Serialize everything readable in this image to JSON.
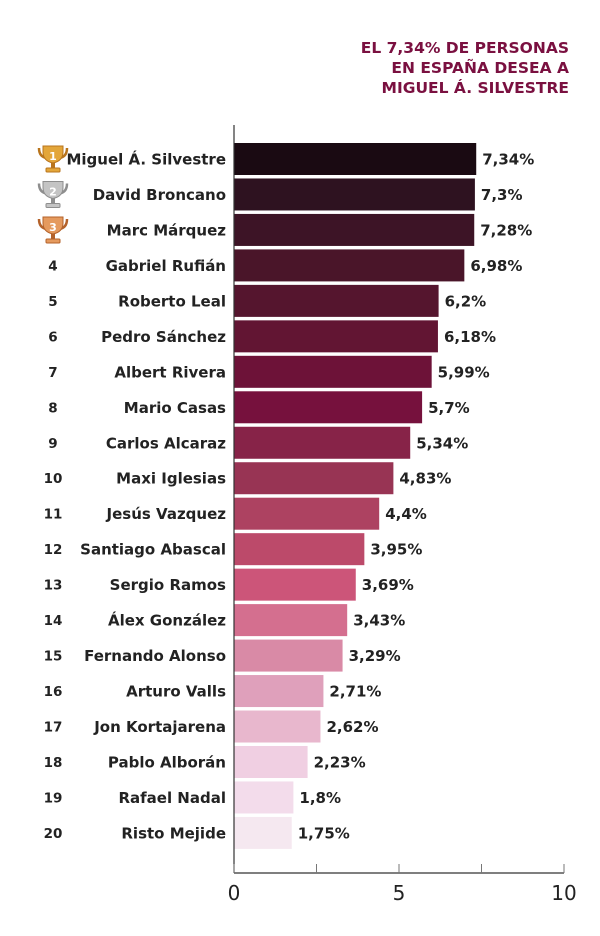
{
  "chart_data": {
    "type": "bar",
    "orientation": "horizontal",
    "title": [
      "EL 7,34% DE PERSONAS",
      "EN ESPAÑA DESEA A",
      "MIGUEL Á. SILVESTRE"
    ],
    "ranks": [
      "1",
      "2",
      "3",
      "4",
      "5",
      "6",
      "7",
      "8",
      "9",
      "10",
      "11",
      "12",
      "13",
      "14",
      "15",
      "16",
      "17",
      "18",
      "19",
      "20"
    ],
    "trophy_ranks": {
      "1": "gold",
      "2": "silver",
      "3": "bronze"
    },
    "categories": [
      "Miguel Á. Silvestre",
      "David Broncano",
      "Marc Márquez",
      "Gabriel Rufián",
      "Roberto Leal",
      "Pedro Sánchez",
      "Albert Rivera",
      "Mario Casas",
      "Carlos Alcaraz",
      "Maxi Iglesias",
      "Jesús Vazquez",
      "Santiago Abascal",
      "Sergio Ramos",
      "Álex González",
      "Fernando Alonso",
      "Arturo Valls",
      "Jon Kortajarena",
      "Pablo Alborán",
      "Rafael Nadal",
      "Risto Mejide"
    ],
    "values": [
      7.34,
      7.3,
      7.28,
      6.98,
      6.2,
      6.18,
      5.99,
      5.7,
      5.34,
      4.83,
      4.4,
      3.95,
      3.69,
      3.43,
      3.29,
      2.71,
      2.62,
      2.23,
      1.8,
      1.75
    ],
    "value_labels": [
      "7,34%",
      "7,3%",
      "7,28%",
      "6,98%",
      "6,2%",
      "6,18%",
      "5,99%",
      "5,7%",
      "5,34%",
      "4,83%",
      "4,4%",
      "3,95%",
      "3,69%",
      "3,43%",
      "3,29%",
      "2,71%",
      "2,62%",
      "2,23%",
      "1,8%",
      "1,75%"
    ],
    "colors": [
      "#1a0a12",
      "#2e1220",
      "#3d1426",
      "#4a1529",
      "#55152e",
      "#621533",
      "#6d1238",
      "#76113d",
      "#872348",
      "#983454",
      "#ad4261",
      "#bc4a6a",
      "#cc5579",
      "#d46f8f",
      "#d98aa6",
      "#dfa0bb",
      "#e8b7cd",
      "#f0cfe2",
      "#f3dceb",
      "#f5e8f0"
    ],
    "xlim": [
      0,
      10
    ],
    "xticks": [
      0,
      2.5,
      5,
      7.5,
      10
    ],
    "xtick_labels": [
      "0",
      "",
      "5",
      "",
      "10"
    ],
    "grid": false,
    "title_color": "#7a1040"
  }
}
